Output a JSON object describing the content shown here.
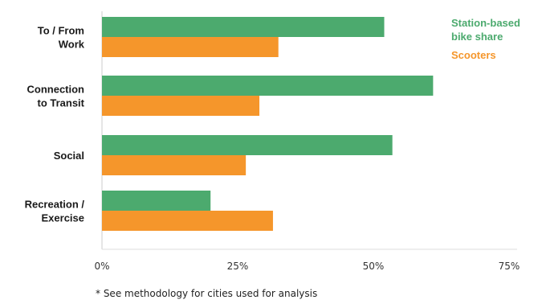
{
  "chart_data": {
    "type": "bar",
    "orientation": "horizontal",
    "categories": [
      [
        "To / From",
        "Work"
      ],
      [
        "Connection",
        "to Transit"
      ],
      [
        "Social"
      ],
      [
        "Recreation /",
        "Exercise"
      ]
    ],
    "series": [
      {
        "name": [
          "Station-based",
          "bike share"
        ],
        "color": "#4caa6e",
        "values": [
          52,
          61,
          53.5,
          20
        ]
      },
      {
        "name": [
          "Scooters"
        ],
        "color": "#f5962b",
        "values": [
          32.5,
          29,
          26.5,
          31.5
        ]
      }
    ],
    "xlim": [
      0,
      75
    ],
    "xticks": [
      0,
      25,
      50,
      75
    ],
    "xtick_labels": [
      "0%",
      "25%",
      "50%",
      "75%"
    ],
    "legend_position": "top-right",
    "grid": false
  },
  "footnote": "* See methodology for cities used for analysis"
}
